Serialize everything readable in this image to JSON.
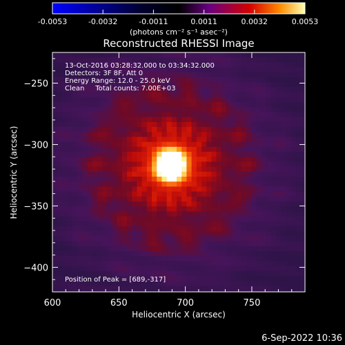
{
  "chart_data": {
    "type": "heatmap",
    "title": "Reconstructed RHESSI Image",
    "xlabel": "Heliocentric X (arcsec)",
    "ylabel": "Heliocentric Y (arcsec)",
    "xlim": [
      600,
      790
    ],
    "ylim": [
      -420,
      -225
    ],
    "xticks": [
      600,
      650,
      700,
      750
    ],
    "yticks": [
      -250,
      -300,
      -350,
      -400
    ],
    "colorbar": {
      "min": -0.0053,
      "max": 0.0053,
      "ticks": [
        "-0.0053",
        "-0.0032",
        "-0.0011",
        "0.0011",
        "0.0032",
        "0.0053"
      ],
      "unit": "(photons cm⁻² s⁻¹ asec⁻²)",
      "colormap": [
        "#0000ff",
        "#000000",
        "#6a0080",
        "#d40000",
        "#ff8a00",
        "#ffff80",
        "#ffffff"
      ]
    },
    "peak": {
      "x": 689,
      "y": -317
    },
    "annotations": [
      "13-Oct-2016 03:28:32.000 to 03:34:32.000",
      "Detectors: 3F 8F, Att 0",
      "Energy Range: 12.0 - 25.0 keV",
      "Clean     Total counts: 7.00E+03",
      "Position of Peak = [689,-317]"
    ],
    "colors": {
      "background": "#000000",
      "frame": "#ffffff",
      "low_field": "#3a1a5a"
    }
  },
  "footer": {
    "date": "6-Sep-2022 10:36"
  }
}
